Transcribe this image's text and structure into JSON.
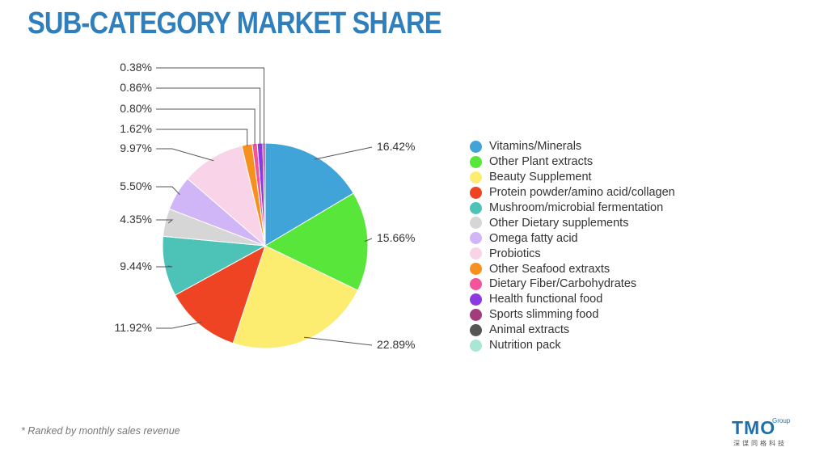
{
  "page": {
    "title": "SUB-CATEGORY MARKET SHARE",
    "footnote": "* Ranked by monthly sales revenue",
    "logo": {
      "name": "TMO",
      "sub": "Group",
      "cn": "深谋同格科技"
    }
  },
  "chart_data": {
    "type": "pie",
    "title": "",
    "legend_position": "right",
    "slices": [
      {
        "name": "Vitamins/Minerals",
        "value": 16.42,
        "label": "16.42%",
        "color": "#41a4d8"
      },
      {
        "name": "Other Plant extracts",
        "value": 15.66,
        "label": "15.66%",
        "color": "#58e63b"
      },
      {
        "name": "Beauty Supplement",
        "value": 22.89,
        "label": "22.89%",
        "color": "#fced70"
      },
      {
        "name": "Protein powder/amino acid/collagen",
        "value": 11.92,
        "label": "11.92%",
        "color": "#ef4424"
      },
      {
        "name": "Mushroom/microbial fermentation",
        "value": 9.44,
        "label": "9.44%",
        "color": "#4cc3b6"
      },
      {
        "name": "Other Dietary supplements",
        "value": 4.35,
        "label": "4.35%",
        "color": "#d6d6d6"
      },
      {
        "name": "Omega fatty acid",
        "value": 5.5,
        "label": "5.50%",
        "color": "#d1b6f7"
      },
      {
        "name": "Probiotics",
        "value": 9.97,
        "label": "9.97%",
        "color": "#f9d3e7"
      },
      {
        "name": "Other Seafood extraxts",
        "value": 1.62,
        "label": "1.62%",
        "color": "#f6901e"
      },
      {
        "name": "Dietary Fiber/Carbohydrates",
        "value": 0.8,
        "label": "0.80%",
        "color": "#f4539b"
      },
      {
        "name": "Health functional food",
        "value": 0.86,
        "label": "0.86%",
        "color": "#8b3ae0"
      },
      {
        "name": "Sports slimming food",
        "value": 0.38,
        "label": "0.38%",
        "color": "#a33c7a"
      },
      {
        "name": "Animal extracts",
        "value": 0,
        "label": "",
        "color": "#555555"
      },
      {
        "name": "Nutrition pack",
        "value": 0,
        "label": "",
        "color": "#a8e6d6"
      }
    ]
  }
}
